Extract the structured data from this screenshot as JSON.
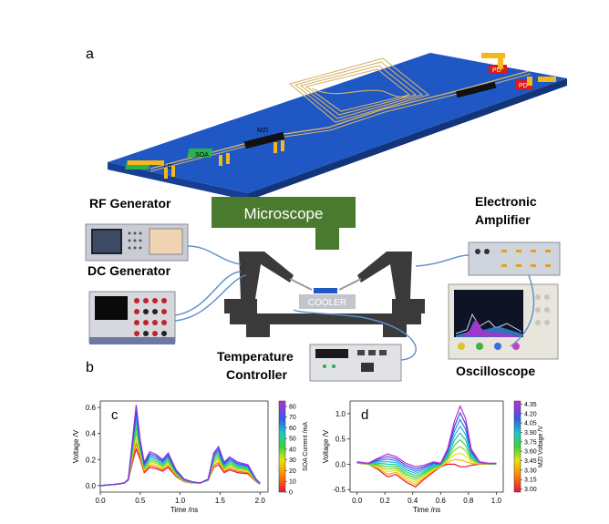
{
  "panels": {
    "a": "a",
    "b": "b",
    "c": "c",
    "d": "d"
  },
  "chip": {
    "labels": {
      "dfb": "LD",
      "soa": "SOA",
      "mzi": "MZI",
      "pd1": "PD",
      "pd2": "PD"
    }
  },
  "setup": {
    "rf_generator": "RF Generator",
    "dc_generator": "DC Generator",
    "microscope": "Microscope",
    "electronic_amplifier_1": "Electronic",
    "electronic_amplifier_2": "Amplifier",
    "cooler": "COOLER",
    "temperature_controller_1": "Temperature",
    "temperature_controller_2": "Controller",
    "oscilloscope": "Oscilloscope"
  },
  "colors": {
    "chip_substrate": "#1f57c4",
    "microscope": "#4a7a2d",
    "stage": "#3a3a3a"
  },
  "chart_data": [
    {
      "type": "line",
      "panel": "c",
      "xlabel": "Time /ns",
      "ylabel": "Voltage /V",
      "xlim": [
        0,
        2.1
      ],
      "ylim": [
        -0.05,
        0.65
      ],
      "xticks": [
        "0.0",
        "0.5",
        "1.0",
        "1.5",
        "2.0"
      ],
      "yticks": [
        "0.0",
        "0.2",
        "0.4",
        "0.6"
      ],
      "colorbar": {
        "label": "SOA Current /mA",
        "ticks": [
          "0",
          "10",
          "20",
          "30",
          "40",
          "50",
          "60",
          "70",
          "80"
        ],
        "range": [
          0,
          85
        ]
      },
      "series_params": [
        0,
        10,
        20,
        30,
        40,
        50,
        60,
        70,
        80
      ],
      "x": [
        0.0,
        0.1,
        0.2,
        0.3,
        0.35,
        0.42,
        0.45,
        0.5,
        0.55,
        0.62,
        0.7,
        0.78,
        0.85,
        0.95,
        1.05,
        1.15,
        1.25,
        1.35,
        1.42,
        1.48,
        1.55,
        1.62,
        1.72,
        1.85,
        1.95,
        2.0
      ],
      "shape_peak": [
        0.0,
        0.005,
        0.01,
        0.02,
        0.05,
        0.45,
        0.62,
        0.35,
        0.18,
        0.26,
        0.24,
        0.2,
        0.25,
        0.12,
        0.05,
        0.03,
        0.02,
        0.05,
        0.25,
        0.3,
        0.18,
        0.22,
        0.18,
        0.16,
        0.05,
        0.02
      ],
      "shape_base": [
        0.0,
        0.005,
        0.01,
        0.02,
        0.04,
        0.22,
        0.28,
        0.2,
        0.1,
        0.14,
        0.13,
        0.11,
        0.14,
        0.07,
        0.03,
        0.02,
        0.02,
        0.04,
        0.14,
        0.16,
        0.1,
        0.12,
        0.1,
        0.09,
        0.03,
        0.01
      ]
    },
    {
      "type": "line",
      "panel": "d",
      "xlabel": "Time /ns",
      "ylabel": "Voltage /V",
      "xlim": [
        -0.05,
        1.05
      ],
      "ylim": [
        -0.55,
        1.25
      ],
      "xticks": [
        "0.0",
        "0.2",
        "0.4",
        "0.6",
        "0.8",
        "1.0"
      ],
      "yticks": [
        "-0.5",
        "0.0",
        "0.5",
        "1.0"
      ],
      "colorbar": {
        "label": "MZI Voltage /V",
        "ticks": [
          "3.00",
          "3.15",
          "3.30",
          "3.45",
          "3.60",
          "3.75",
          "3.90",
          "4.05",
          "4.20",
          "4.35"
        ],
        "range": [
          2.95,
          4.4
        ]
      },
      "series_params": [
        3.0,
        3.15,
        3.3,
        3.45,
        3.6,
        3.75,
        3.9,
        4.05,
        4.2,
        4.35
      ],
      "x": [
        0.0,
        0.08,
        0.15,
        0.22,
        0.28,
        0.35,
        0.42,
        0.48,
        0.55,
        0.6,
        0.65,
        0.7,
        0.74,
        0.78,
        0.82,
        0.88,
        0.95,
        1.0
      ],
      "shape_a": [
        0.05,
        0.02,
        0.12,
        0.2,
        0.15,
        0.02,
        -0.05,
        -0.02,
        0.05,
        0.02,
        0.3,
        0.85,
        1.15,
        0.9,
        0.3,
        0.05,
        0.02,
        0.02
      ],
      "shape_b": [
        0.02,
        0.0,
        -0.1,
        -0.25,
        -0.2,
        -0.35,
        -0.45,
        -0.3,
        -0.15,
        -0.05,
        0.0,
        0.0,
        -0.05,
        -0.05,
        -0.02,
        0.0,
        0.0,
        0.0
      ]
    }
  ]
}
